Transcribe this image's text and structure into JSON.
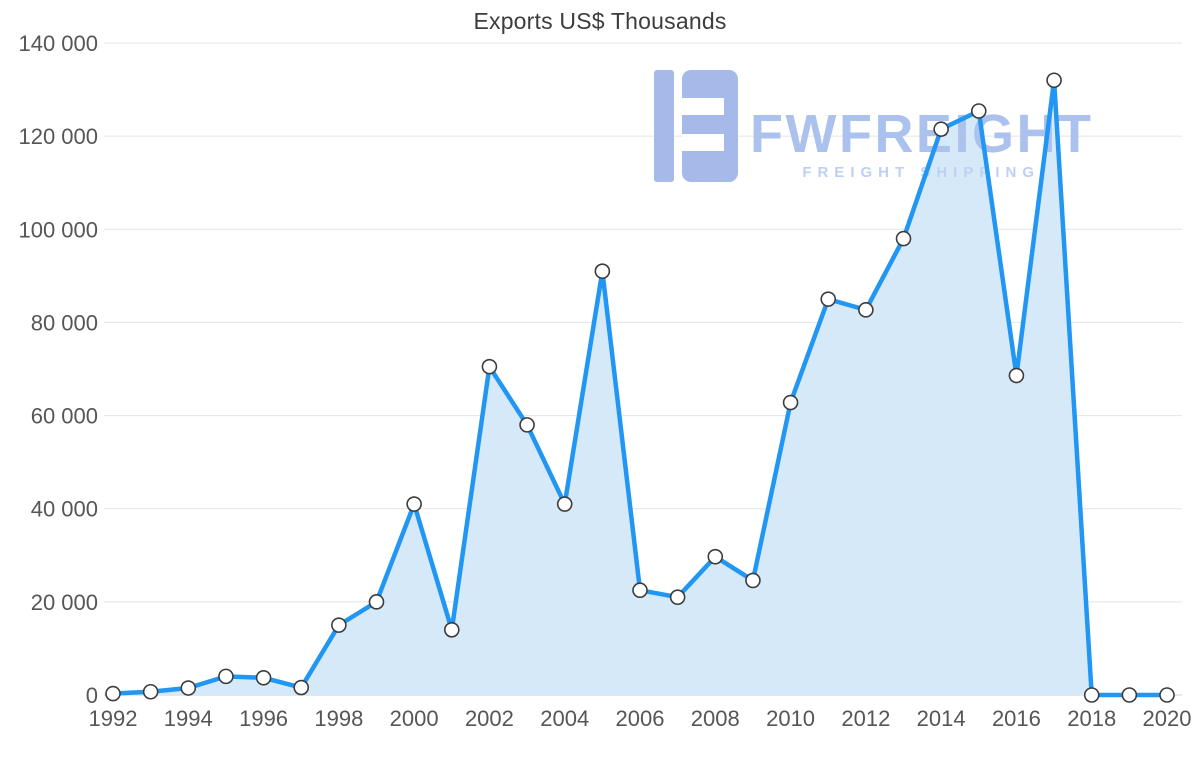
{
  "chart_data": {
    "type": "area",
    "title": "Exports US$ Thousands",
    "xlabel": "",
    "ylabel": "",
    "x": [
      1992,
      1993,
      1994,
      1995,
      1996,
      1997,
      1998,
      1999,
      2000,
      2001,
      2002,
      2003,
      2004,
      2005,
      2006,
      2007,
      2008,
      2009,
      2010,
      2011,
      2012,
      2013,
      2014,
      2015,
      2016,
      2017,
      2018,
      2019,
      2020
    ],
    "values": [
      300,
      700,
      1500,
      4000,
      3700,
      1600,
      15000,
      20000,
      41000,
      14000,
      70500,
      58000,
      41000,
      91000,
      22500,
      21000,
      29700,
      24600,
      62800,
      85000,
      82700,
      98000,
      121500,
      125400,
      68600,
      132000,
      0,
      0,
      0
    ],
    "ylim": [
      0,
      140000
    ],
    "ytick_step": 20000,
    "xtick_every_years": 2,
    "grid": true,
    "legend_position": "none",
    "line_color": "#2196f3",
    "area_color": "#d6e9f9",
    "marker_fill": "#ffffff",
    "marker_stroke": "#3c3c3c",
    "grid_color": "#e4e4e4",
    "zero_line_color": "#cfcfcf",
    "axis_label_color": "#565656",
    "title_color": "#3d3d3d"
  },
  "watermark": {
    "brand": "FWFREIGHT",
    "tagline": "FREIGHT SHIPPING",
    "brand_color": "#abc1ee",
    "tagline_color": "#bdd0f3",
    "glyph_color": "#9fb5e9",
    "glyph": "fwfreight-logo"
  }
}
